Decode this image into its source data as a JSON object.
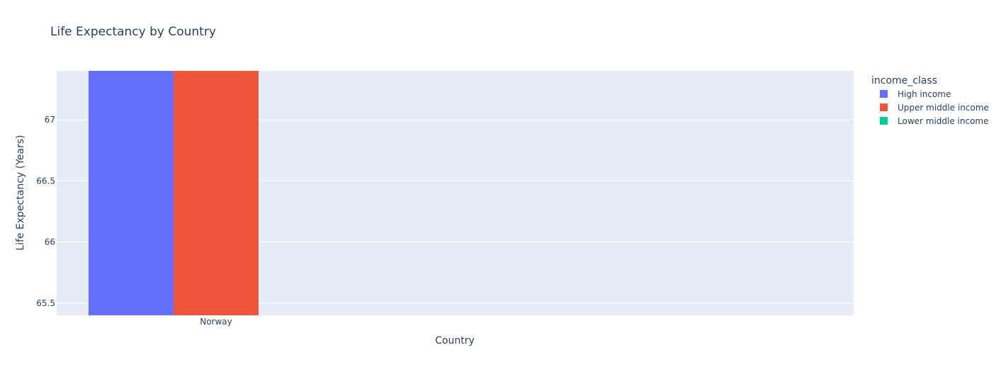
{
  "chart_data": {
    "type": "bar",
    "title": "Life Expectancy by Country",
    "xlabel": "Country",
    "ylabel": "Life Expectancy (Years)",
    "categories": [
      "Norway"
    ],
    "barmode": "group",
    "ylim": [
      65.4,
      67.4
    ],
    "yticks": [
      65.5,
      66,
      66.5,
      67
    ],
    "ytick_labels": [
      "65.5",
      "66",
      "66.5",
      "67"
    ],
    "grid": true,
    "legend": {
      "title": "income_class",
      "placement": "right"
    },
    "series": [
      {
        "name": "High income",
        "color": "#636efa",
        "values": [
          67.4
        ]
      },
      {
        "name": "Upper middle income",
        "color": "#ef553b",
        "values": [
          67.4
        ]
      },
      {
        "name": "Lower middle income",
        "color": "#00cc96",
        "values": [
          null
        ]
      }
    ],
    "plot_background": "#e5ecf6"
  }
}
